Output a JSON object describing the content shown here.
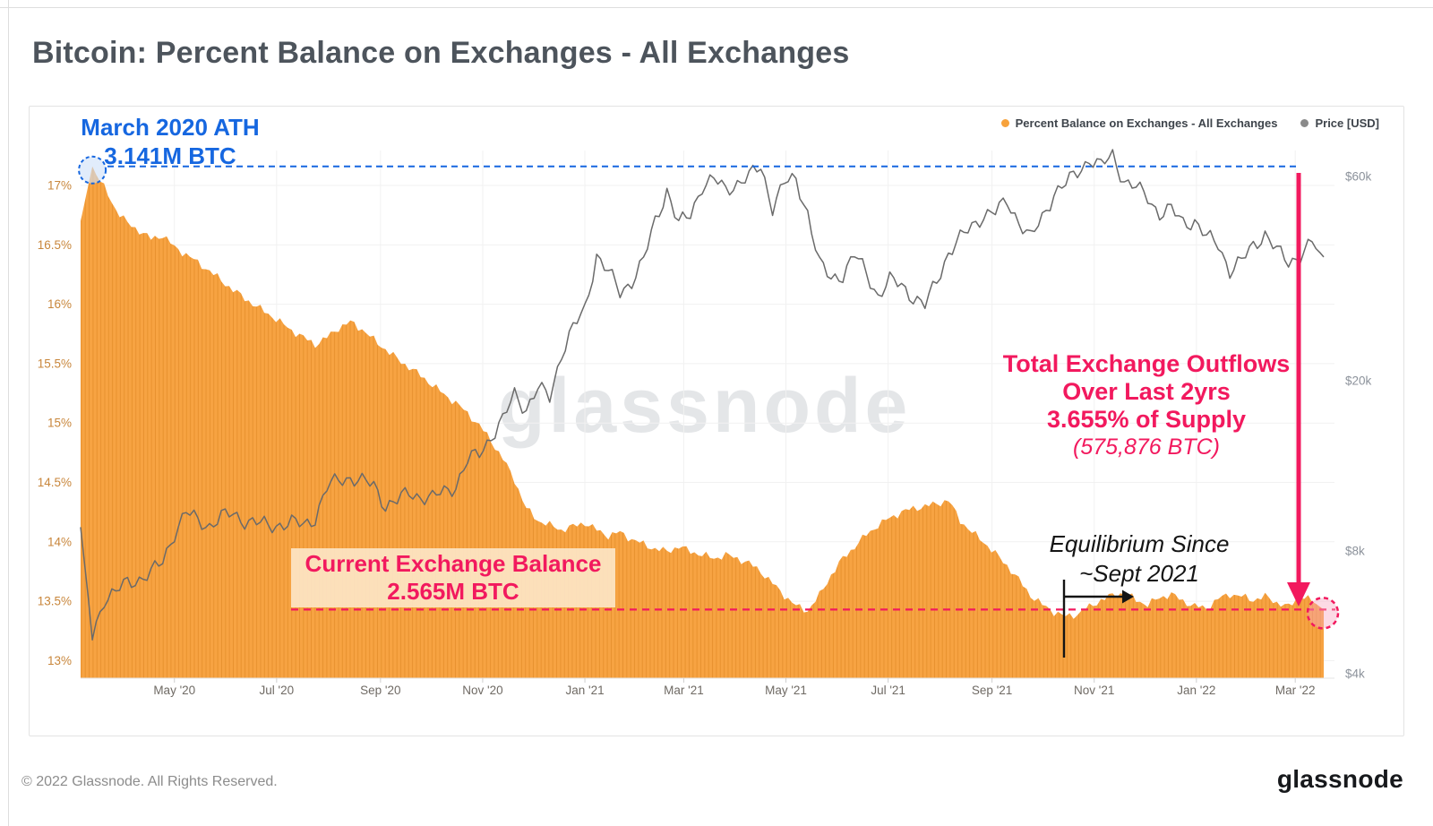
{
  "page": {
    "title": "Bitcoin: Percent Balance on Exchanges - All Exchanges",
    "watermark": "glassnode",
    "footer_left": "© 2022 Glassnode. All Rights Reserved.",
    "footer_logo": "glassnode"
  },
  "legend": [
    {
      "label": "Percent Balance on Exchanges - All Exchanges",
      "color": "#f7a23b"
    },
    {
      "label": "Price [USD]",
      "color": "#8a8a8a"
    }
  ],
  "colors": {
    "bar_orange": "#f7a342",
    "bar_stripe": "#e8922f",
    "price_gray": "#6a6a6a",
    "accent_blue": "#1667e0",
    "accent_pink": "#f2195e",
    "grid": "#f1f1f1",
    "axis_left_label": "#c8863b",
    "axis_right_label": "#8c929b",
    "axis_x_label": "#6f6a64"
  },
  "annotations": {
    "ath": {
      "line1": "March 2020 ATH",
      "line2": "3.141M BTC",
      "value_pct": 17.16
    },
    "current": {
      "line1": "Current Exchange Balance",
      "line2": "2.565M BTC",
      "value_pct": 13.43
    },
    "outflows": {
      "line1": "Total Exchange Outflows",
      "line2": "Over Last 2yrs",
      "line3": "3.655% of Supply",
      "line4": "(575,876 BTC)"
    },
    "equilibrium": {
      "line1": "Equilibrium Since",
      "line2": "~Sept 2021"
    }
  },
  "axes": {
    "left_ticks": [
      {
        "label": "17%",
        "value": 17
      },
      {
        "label": "16.5%",
        "value": 16.5
      },
      {
        "label": "16%",
        "value": 16
      },
      {
        "label": "15.5%",
        "value": 15.5
      },
      {
        "label": "15%",
        "value": 15
      },
      {
        "label": "14.5%",
        "value": 14.5
      },
      {
        "label": "14%",
        "value": 14
      },
      {
        "label": "13.5%",
        "value": 13.5
      },
      {
        "label": "13%",
        "value": 13
      }
    ],
    "right_ticks": [
      {
        "label": "$60k",
        "value": 60000
      },
      {
        "label": "$20k",
        "value": 20000
      },
      {
        "label": "$8k",
        "value": 8000
      },
      {
        "label": "$4k",
        "value": 4000
      }
    ],
    "x_ticks": [
      {
        "label": "May '20",
        "day": 56
      },
      {
        "label": "Jul '20",
        "day": 117
      },
      {
        "label": "Sep '20",
        "day": 179
      },
      {
        "label": "Nov '20",
        "day": 240
      },
      {
        "label": "Jan '21",
        "day": 301
      },
      {
        "label": "Mar '21",
        "day": 360
      },
      {
        "label": "May '21",
        "day": 421
      },
      {
        "label": "Jul '21",
        "day": 482
      },
      {
        "label": "Sep '21",
        "day": 544
      },
      {
        "label": "Nov '21",
        "day": 605
      },
      {
        "label": "Jan '22",
        "day": 666
      },
      {
        "label": "Mar '22",
        "day": 725
      }
    ]
  },
  "chart_data": {
    "title": "Bitcoin: Percent Balance on Exchanges - All Exchanges",
    "xlabel": "",
    "x_start": "2020-03-06",
    "x_interval_days": 7,
    "legend_position": "top-right",
    "grid": true,
    "percent_axis": {
      "min": 13,
      "max": 17.25,
      "ticks": [
        17,
        16.5,
        16,
        15.5,
        15,
        14.5,
        14,
        13.5,
        13
      ]
    },
    "price_axis": {
      "scale": "log",
      "ticks": [
        60000,
        20000,
        8000,
        4000
      ]
    },
    "series": [
      {
        "name": "Percent Balance on Exchanges - All Exchanges",
        "type": "bar",
        "unit": "%",
        "values": [
          16.7,
          17.16,
          16.98,
          16.8,
          16.68,
          16.62,
          16.55,
          16.58,
          16.48,
          16.42,
          16.35,
          16.28,
          16.2,
          16.12,
          16.05,
          15.98,
          15.92,
          15.85,
          15.78,
          15.72,
          15.66,
          15.72,
          15.8,
          15.85,
          15.79,
          15.7,
          15.62,
          15.54,
          15.47,
          15.4,
          15.32,
          15.24,
          15.17,
          15.08,
          14.98,
          14.85,
          14.7,
          14.52,
          14.28,
          14.18,
          14.14,
          14.1,
          14.13,
          14.16,
          14.1,
          14.05,
          14.08,
          14.02,
          13.98,
          13.94,
          13.92,
          13.96,
          13.92,
          13.89,
          13.86,
          13.89,
          13.86,
          13.82,
          13.75,
          13.65,
          13.55,
          13.46,
          13.42,
          13.55,
          13.72,
          13.86,
          13.96,
          14.06,
          14.14,
          14.2,
          14.25,
          14.28,
          14.3,
          14.32,
          14.35,
          14.18,
          14.08,
          14.0,
          13.9,
          13.8,
          13.68,
          13.55,
          13.47,
          13.41,
          13.37,
          13.39,
          13.45,
          13.51,
          13.55,
          13.57,
          13.51,
          13.47,
          13.53,
          13.56,
          13.5,
          13.46,
          13.44,
          13.52,
          13.56,
          13.54,
          13.51,
          13.54,
          13.49,
          13.45,
          13.55,
          13.5,
          13.43
        ]
      },
      {
        "name": "Price [USD]",
        "type": "line",
        "unit": "USD",
        "values": [
          9100,
          5050,
          6200,
          6400,
          6750,
          6900,
          7100,
          7550,
          8850,
          9850,
          9400,
          9200,
          9600,
          9750,
          9450,
          9300,
          9150,
          9250,
          9300,
          9200,
          9600,
          11200,
          11750,
          11900,
          11600,
          11400,
          10250,
          10450,
          10950,
          10750,
          10600,
          11050,
          11400,
          12950,
          13550,
          14850,
          16100,
          18650,
          17200,
          19150,
          18300,
          23200,
          26500,
          29300,
          39500,
          35800,
          32100,
          34300,
          38100,
          47200,
          55900,
          46300,
          48900,
          57300,
          58900,
          55800,
          58100,
          59800,
          63200,
          51100,
          57800,
          58900,
          49500,
          37300,
          34700,
          35500,
          39200,
          35800,
          31600,
          34200,
          33500,
          31400,
          29800,
          34300,
          39900,
          42800,
          46000,
          48900,
          49300,
          52700,
          47200,
          42800,
          48200,
          54900,
          57400,
          61500,
          66000,
          63200,
          67500,
          58500,
          56300,
          53700,
          49200,
          50100,
          46900,
          47300,
          43100,
          41800,
          36200,
          37900,
          41500,
          44200,
          40100,
          37800,
          39400,
          41900,
          38900
        ]
      }
    ],
    "annotation_values": {
      "march_2020_ath_btc": "3.141M BTC",
      "current_balance_btc": "2.565M BTC",
      "outflow_pct_of_supply": "3.655%",
      "outflow_btc": "575,876 BTC"
    }
  }
}
